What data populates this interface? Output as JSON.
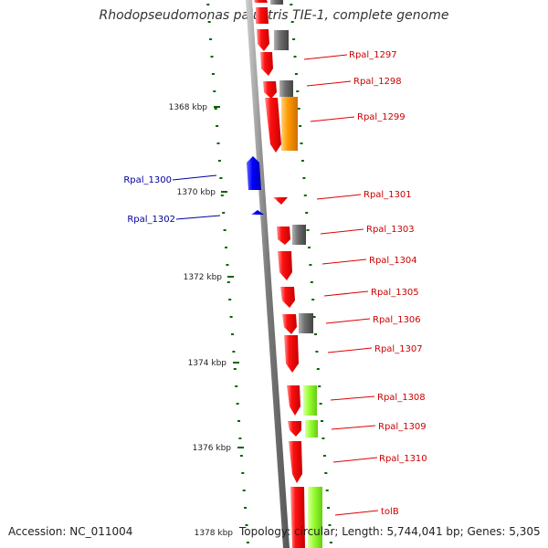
{
  "header": {
    "title": "Rhodopseudomonas palustris TIE-1, complete genome"
  },
  "footer": {
    "accession": "Accession: NC_011004",
    "topology": "Topology: circular; Length: 5,744,041 bp; Genes: 5,305"
  },
  "scale": {
    "ticks": [
      "1368 kbp",
      "1370 kbp",
      "1372 kbp",
      "1374 kbp",
      "1376 kbp",
      "1378 kbp"
    ]
  },
  "genes": [
    {
      "label": "Rpal_1297",
      "strand": "forward",
      "color": "#cc0000"
    },
    {
      "label": "Rpal_1298",
      "strand": "forward",
      "color": "#cc0000"
    },
    {
      "label": "Rpal_1299",
      "strand": "forward",
      "color": "#cc0000"
    },
    {
      "label": "Rpal_1300",
      "strand": "reverse",
      "color": "#000099"
    },
    {
      "label": "Rpal_1301",
      "strand": "forward",
      "color": "#cc0000"
    },
    {
      "label": "Rpal_1302",
      "strand": "reverse",
      "color": "#000099"
    },
    {
      "label": "Rpal_1303",
      "strand": "forward",
      "color": "#cc0000"
    },
    {
      "label": "Rpal_1304",
      "strand": "forward",
      "color": "#cc0000"
    },
    {
      "label": "Rpal_1305",
      "strand": "forward",
      "color": "#cc0000"
    },
    {
      "label": "Rpal_1306",
      "strand": "forward",
      "color": "#cc0000"
    },
    {
      "label": "Rpal_1307",
      "strand": "forward",
      "color": "#cc0000"
    },
    {
      "label": "Rpal_1308",
      "strand": "forward",
      "color": "#cc0000"
    },
    {
      "label": "Rpal_1309",
      "strand": "forward",
      "color": "#cc0000"
    },
    {
      "label": "Rpal_1310",
      "strand": "forward",
      "color": "#cc0000"
    },
    {
      "label": "tolB",
      "strand": "forward",
      "color": "#cc0000"
    }
  ],
  "colors": {
    "forward_cds": "#ff0000",
    "reverse_cds": "#0000ee",
    "cog_gray": "#666666",
    "cog_orange": "#ff9900",
    "cog_green": "#99ff33",
    "dots": "#006600",
    "backbone": "#888888"
  }
}
